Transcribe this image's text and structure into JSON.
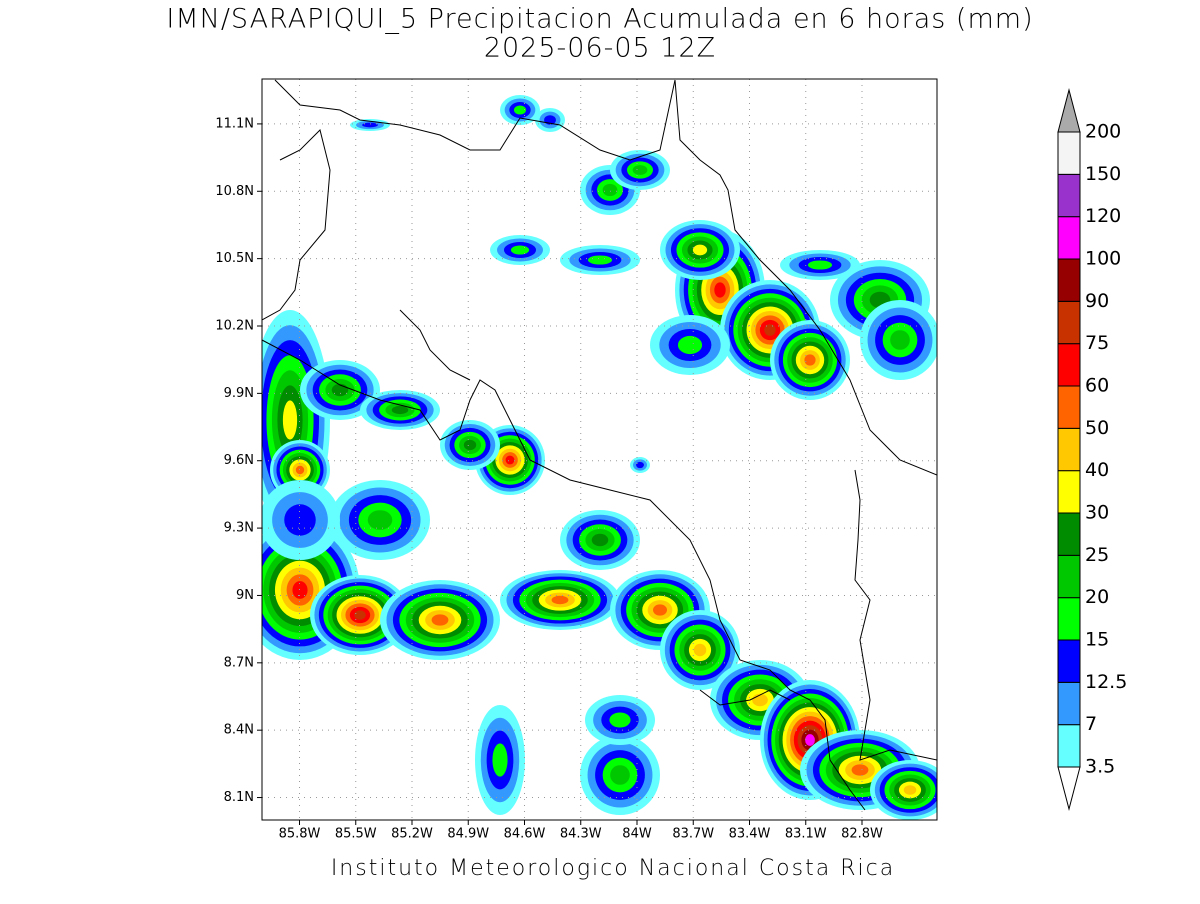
{
  "title": "IMN/SARAPIQUI_5 Precipitacion Acumulada en 6 horas (mm)",
  "subtitle": "2025-06-05 12Z",
  "footer": "Instituto Meteorologico Nacional Costa Rica",
  "map": {
    "xlim": [
      -86.0,
      -82.4
    ],
    "ylim": [
      8.0,
      11.3
    ],
    "xticks": [
      {
        "value": -85.8,
        "label": "85.8W"
      },
      {
        "value": -85.5,
        "label": "85.5W"
      },
      {
        "value": -85.2,
        "label": "85.2W"
      },
      {
        "value": -84.9,
        "label": "84.9W"
      },
      {
        "value": -84.6,
        "label": "84.6W"
      },
      {
        "value": -84.3,
        "label": "84.3W"
      },
      {
        "value": -84,
        "label": "84W"
      },
      {
        "value": -83.7,
        "label": "83.7W"
      },
      {
        "value": -83.4,
        "label": "83.4W"
      },
      {
        "value": -83.1,
        "label": "83.1W"
      },
      {
        "value": -82.8,
        "label": "82.8W"
      }
    ],
    "yticks": [
      {
        "value": 11.1,
        "label": "11.1N"
      },
      {
        "value": 10.8,
        "label": "10.8N"
      },
      {
        "value": 10.5,
        "label": "10.5N"
      },
      {
        "value": 10.2,
        "label": "10.2N"
      },
      {
        "value": 9.9,
        "label": "9.9N"
      },
      {
        "value": 9.6,
        "label": "9.6N"
      },
      {
        "value": 9.3,
        "label": "9.3N"
      },
      {
        "value": 9,
        "label": "9N"
      },
      {
        "value": 8.7,
        "label": "8.7N"
      },
      {
        "value": 8.4,
        "label": "8.4N"
      },
      {
        "value": 8.1,
        "label": "8.1N"
      }
    ],
    "grid": true
  },
  "colorbar": {
    "levels": [
      3.5,
      7,
      12.5,
      15,
      20,
      25,
      30,
      40,
      50,
      60,
      75,
      90,
      100,
      120,
      150,
      200
    ],
    "colors": [
      "#66ffff",
      "#3399ff",
      "#0000ff",
      "#00ff00",
      "#00c800",
      "#008c00",
      "#ffff00",
      "#ffc800",
      "#ff6400",
      "#ff0000",
      "#c83200",
      "#960000",
      "#ff00ff",
      "#9932cc",
      "#f4f4f4"
    ],
    "over_color": "#aaaaaa",
    "under_color": "#ffffff"
  }
}
